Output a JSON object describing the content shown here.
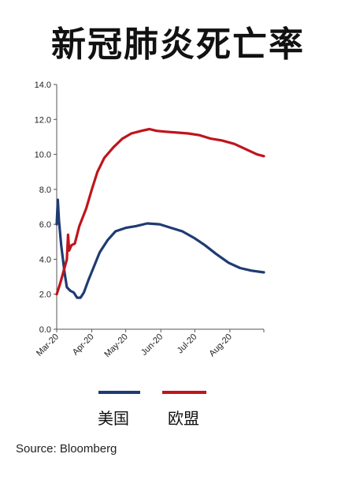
{
  "title": "新冠肺炎死亡率",
  "source": "Source: Bloomberg",
  "chart_data": {
    "type": "line",
    "title": "新冠肺炎死亡率",
    "ylim": [
      0,
      14
    ],
    "y_ticks": [
      "0.0",
      "2.0",
      "4.0",
      "6.0",
      "8.0",
      "10.0",
      "12.0",
      "14.0"
    ],
    "x_ticks": [
      "Mar-20",
      "Apr-20",
      "May-20",
      "Jun-20",
      "Jul-20",
      "Aug-20"
    ],
    "legend_position": "bottom",
    "series": [
      {
        "name": "美国",
        "color": "#1f3b73",
        "points": [
          [
            "2020-03-01",
            6.0
          ],
          [
            "2020-03-02",
            7.4
          ],
          [
            "2020-03-03",
            6.2
          ],
          [
            "2020-03-05",
            4.8
          ],
          [
            "2020-03-08",
            3.2
          ],
          [
            "2020-03-10",
            2.4
          ],
          [
            "2020-03-13",
            2.2
          ],
          [
            "2020-03-16",
            2.1
          ],
          [
            "2020-03-19",
            1.8
          ],
          [
            "2020-03-22",
            1.8
          ],
          [
            "2020-03-25",
            2.1
          ],
          [
            "2020-03-29",
            2.8
          ],
          [
            "2020-04-03",
            3.6
          ],
          [
            "2020-04-08",
            4.4
          ],
          [
            "2020-04-15",
            5.1
          ],
          [
            "2020-04-22",
            5.6
          ],
          [
            "2020-05-01",
            5.8
          ],
          [
            "2020-05-10",
            5.9
          ],
          [
            "2020-05-20",
            6.05
          ],
          [
            "2020-05-31",
            6.0
          ],
          [
            "2020-06-10",
            5.8
          ],
          [
            "2020-06-20",
            5.6
          ],
          [
            "2020-07-01",
            5.2
          ],
          [
            "2020-07-10",
            4.8
          ],
          [
            "2020-07-20",
            4.3
          ],
          [
            "2020-07-31",
            3.8
          ],
          [
            "2020-08-10",
            3.5
          ],
          [
            "2020-08-20",
            3.35
          ],
          [
            "2020-08-31",
            3.25
          ]
        ]
      },
      {
        "name": "欧盟",
        "color": "#c0141c",
        "points": [
          [
            "2020-03-01",
            2.0
          ],
          [
            "2020-03-04",
            2.6
          ],
          [
            "2020-03-07",
            3.3
          ],
          [
            "2020-03-10",
            4.0
          ],
          [
            "2020-03-11",
            5.4
          ],
          [
            "2020-03-12",
            4.5
          ],
          [
            "2020-03-14",
            4.8
          ],
          [
            "2020-03-17",
            4.9
          ],
          [
            "2020-03-21",
            5.9
          ],
          [
            "2020-03-27",
            6.9
          ],
          [
            "2020-04-01",
            8.0
          ],
          [
            "2020-04-06",
            9.0
          ],
          [
            "2020-04-12",
            9.8
          ],
          [
            "2020-04-20",
            10.4
          ],
          [
            "2020-04-28",
            10.9
          ],
          [
            "2020-05-06",
            11.2
          ],
          [
            "2020-05-15",
            11.35
          ],
          [
            "2020-05-22",
            11.45
          ],
          [
            "2020-05-28",
            11.35
          ],
          [
            "2020-06-05",
            11.3
          ],
          [
            "2020-06-15",
            11.25
          ],
          [
            "2020-06-25",
            11.2
          ],
          [
            "2020-07-05",
            11.1
          ],
          [
            "2020-07-15",
            10.9
          ],
          [
            "2020-07-25",
            10.8
          ],
          [
            "2020-08-05",
            10.6
          ],
          [
            "2020-08-15",
            10.3
          ],
          [
            "2020-08-25",
            10.0
          ],
          [
            "2020-08-31",
            9.9
          ]
        ]
      }
    ]
  }
}
